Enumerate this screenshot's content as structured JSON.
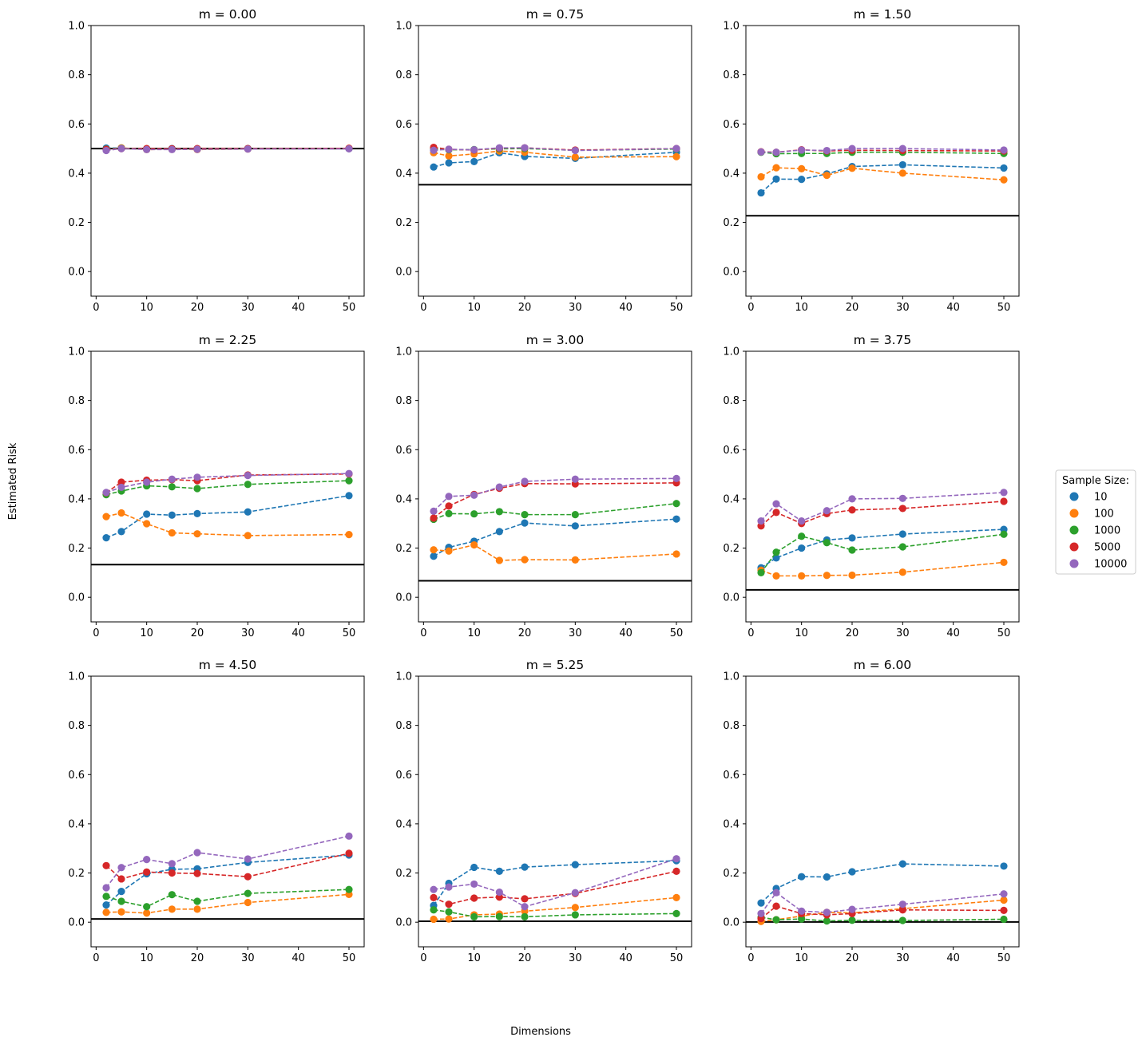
{
  "figure": {
    "xlabel": "Dimensions",
    "ylabel": "Estimated Risk"
  },
  "legend": {
    "title": "Sample Size:",
    "placement": "right-center",
    "entries": [
      "10",
      "100",
      "1000",
      "5000",
      "10000"
    ],
    "colors": [
      "#1f77b4",
      "#ff7f0e",
      "#2ca02c",
      "#d62728",
      "#9467bd"
    ]
  },
  "chart_data": [
    {
      "type": "line",
      "title": "m = 0.00",
      "xlim": [
        -1,
        53
      ],
      "ylim": [
        -0.1,
        1.0
      ],
      "xticks": [
        0,
        10,
        20,
        30,
        40,
        50
      ],
      "yticks": [
        0.0,
        0.2,
        0.4,
        0.6,
        0.8,
        1.0
      ],
      "x": [
        2,
        5,
        10,
        15,
        20,
        30,
        50
      ],
      "reference_line": 0.5,
      "series": [
        {
          "name": "10",
          "values": [
            0.502,
            0.502,
            0.498,
            0.5,
            0.497,
            0.5,
            0.5
          ]
        },
        {
          "name": "100",
          "values": [
            0.495,
            0.503,
            0.496,
            0.497,
            0.496,
            0.498,
            0.501
          ]
        },
        {
          "name": "1000",
          "values": [
            0.498,
            0.501,
            0.499,
            0.498,
            0.499,
            0.499,
            0.5
          ]
        },
        {
          "name": "5000",
          "values": [
            0.497,
            0.5,
            0.5,
            0.499,
            0.5,
            0.5,
            0.501
          ]
        },
        {
          "name": "10000",
          "values": [
            0.492,
            0.5,
            0.496,
            0.496,
            0.497,
            0.498,
            0.499
          ]
        }
      ]
    },
    {
      "type": "line",
      "title": "m = 0.75",
      "xlim": [
        -1,
        53
      ],
      "ylim": [
        -0.1,
        1.0
      ],
      "xticks": [
        0,
        10,
        20,
        30,
        40,
        50
      ],
      "yticks": [
        0.0,
        0.2,
        0.4,
        0.6,
        0.8,
        1.0
      ],
      "x": [
        2,
        5,
        10,
        15,
        20,
        30,
        50
      ],
      "reference_line": 0.353,
      "series": [
        {
          "name": "10",
          "values": [
            0.425,
            0.442,
            0.447,
            0.483,
            0.468,
            0.46,
            0.485
          ]
        },
        {
          "name": "100",
          "values": [
            0.483,
            0.47,
            0.478,
            0.49,
            0.485,
            0.465,
            0.467
          ]
        },
        {
          "name": "1000",
          "values": [
            0.498,
            0.495,
            0.496,
            0.499,
            0.5,
            0.493,
            0.498
          ]
        },
        {
          "name": "5000",
          "values": [
            0.505,
            0.497,
            0.494,
            0.502,
            0.503,
            0.494,
            0.5
          ]
        },
        {
          "name": "10000",
          "values": [
            0.493,
            0.497,
            0.495,
            0.503,
            0.503,
            0.492,
            0.5
          ]
        }
      ]
    },
    {
      "type": "line",
      "title": "m = 1.50",
      "xlim": [
        -1,
        53
      ],
      "ylim": [
        -0.1,
        1.0
      ],
      "xticks": [
        0,
        10,
        20,
        30,
        40,
        50
      ],
      "yticks": [
        0.0,
        0.2,
        0.4,
        0.6,
        0.8,
        1.0
      ],
      "x": [
        2,
        5,
        10,
        15,
        20,
        30,
        50
      ],
      "reference_line": 0.227,
      "series": [
        {
          "name": "10",
          "values": [
            0.32,
            0.376,
            0.375,
            0.397,
            0.427,
            0.434,
            0.421
          ]
        },
        {
          "name": "100",
          "values": [
            0.385,
            0.422,
            0.418,
            0.391,
            0.42,
            0.4,
            0.373
          ]
        },
        {
          "name": "1000",
          "values": [
            0.485,
            0.479,
            0.48,
            0.48,
            0.485,
            0.485,
            0.48
          ]
        },
        {
          "name": "5000",
          "values": [
            0.487,
            0.485,
            0.495,
            0.49,
            0.493,
            0.492,
            0.49
          ]
        },
        {
          "name": "10000",
          "values": [
            0.486,
            0.485,
            0.494,
            0.492,
            0.5,
            0.5,
            0.494
          ]
        }
      ]
    },
    {
      "type": "line",
      "title": "m = 2.25",
      "xlim": [
        -1,
        53
      ],
      "ylim": [
        -0.1,
        1.0
      ],
      "xticks": [
        0,
        10,
        20,
        30,
        40,
        50
      ],
      "yticks": [
        0.0,
        0.2,
        0.4,
        0.6,
        0.8,
        1.0
      ],
      "x": [
        2,
        5,
        10,
        15,
        20,
        30,
        50
      ],
      "reference_line": 0.133,
      "series": [
        {
          "name": "10",
          "values": [
            0.242,
            0.267,
            0.338,
            0.334,
            0.34,
            0.347,
            0.413
          ]
        },
        {
          "name": "100",
          "values": [
            0.328,
            0.343,
            0.299,
            0.262,
            0.258,
            0.251,
            0.255
          ]
        },
        {
          "name": "1000",
          "values": [
            0.417,
            0.432,
            0.453,
            0.449,
            0.442,
            0.459,
            0.474
          ]
        },
        {
          "name": "5000",
          "values": [
            0.425,
            0.468,
            0.476,
            0.478,
            0.474,
            0.497,
            0.501
          ]
        },
        {
          "name": "10000",
          "values": [
            0.426,
            0.447,
            0.468,
            0.48,
            0.488,
            0.495,
            0.503
          ]
        }
      ]
    },
    {
      "type": "line",
      "title": "m = 3.00",
      "xlim": [
        -1,
        53
      ],
      "ylim": [
        -0.1,
        1.0
      ],
      "xticks": [
        0,
        10,
        20,
        30,
        40,
        50
      ],
      "yticks": [
        0.0,
        0.2,
        0.4,
        0.6,
        0.8,
        1.0
      ],
      "x": [
        2,
        5,
        10,
        15,
        20,
        30,
        50
      ],
      "reference_line": 0.067,
      "series": [
        {
          "name": "10",
          "values": [
            0.167,
            0.203,
            0.228,
            0.267,
            0.302,
            0.29,
            0.318
          ]
        },
        {
          "name": "100",
          "values": [
            0.193,
            0.188,
            0.213,
            0.15,
            0.153,
            0.152,
            0.176
          ]
        },
        {
          "name": "1000",
          "values": [
            0.317,
            0.34,
            0.339,
            0.348,
            0.336,
            0.336,
            0.381
          ]
        },
        {
          "name": "5000",
          "values": [
            0.322,
            0.371,
            0.418,
            0.443,
            0.462,
            0.461,
            0.465
          ]
        },
        {
          "name": "10000",
          "values": [
            0.35,
            0.41,
            0.415,
            0.448,
            0.471,
            0.48,
            0.483
          ]
        }
      ]
    },
    {
      "type": "line",
      "title": "m = 3.75",
      "xlim": [
        -1,
        53
      ],
      "ylim": [
        -0.1,
        1.0
      ],
      "xticks": [
        0,
        10,
        20,
        30,
        40,
        50
      ],
      "yticks": [
        0.0,
        0.2,
        0.4,
        0.6,
        0.8,
        1.0
      ],
      "x": [
        2,
        5,
        10,
        15,
        20,
        30,
        50
      ],
      "reference_line": 0.03,
      "series": [
        {
          "name": "10",
          "values": [
            0.12,
            0.16,
            0.2,
            0.233,
            0.241,
            0.257,
            0.276
          ]
        },
        {
          "name": "100",
          "values": [
            0.11,
            0.087,
            0.087,
            0.089,
            0.09,
            0.102,
            0.142
          ]
        },
        {
          "name": "1000",
          "values": [
            0.1,
            0.183,
            0.248,
            0.222,
            0.192,
            0.205,
            0.256
          ]
        },
        {
          "name": "5000",
          "values": [
            0.29,
            0.345,
            0.3,
            0.34,
            0.355,
            0.361,
            0.39
          ]
        },
        {
          "name": "10000",
          "values": [
            0.31,
            0.38,
            0.31,
            0.352,
            0.4,
            0.402,
            0.426
          ]
        }
      ]
    },
    {
      "type": "line",
      "title": "m = 4.50",
      "xlim": [
        -1,
        53
      ],
      "ylim": [
        -0.1,
        1.0
      ],
      "xticks": [
        0,
        10,
        20,
        30,
        40,
        50
      ],
      "yticks": [
        0.0,
        0.2,
        0.4,
        0.6,
        0.8,
        1.0
      ],
      "x": [
        2,
        5,
        10,
        15,
        20,
        30,
        50
      ],
      "reference_line": 0.013,
      "series": [
        {
          "name": "10",
          "values": [
            0.07,
            0.125,
            0.197,
            0.215,
            0.217,
            0.243,
            0.273
          ]
        },
        {
          "name": "100",
          "values": [
            0.04,
            0.042,
            0.037,
            0.053,
            0.053,
            0.08,
            0.113
          ]
        },
        {
          "name": "1000",
          "values": [
            0.105,
            0.085,
            0.063,
            0.112,
            0.085,
            0.117,
            0.133
          ]
        },
        {
          "name": "5000",
          "values": [
            0.23,
            0.176,
            0.204,
            0.2,
            0.198,
            0.185,
            0.28
          ]
        },
        {
          "name": "10000",
          "values": [
            0.14,
            0.222,
            0.255,
            0.238,
            0.283,
            0.257,
            0.35
          ]
        }
      ]
    },
    {
      "type": "line",
      "title": "m = 5.25",
      "xlim": [
        -1,
        53
      ],
      "ylim": [
        -0.1,
        1.0
      ],
      "xticks": [
        0,
        10,
        20,
        30,
        40,
        50
      ],
      "yticks": [
        0.0,
        0.2,
        0.4,
        0.6,
        0.8,
        1.0
      ],
      "x": [
        2,
        5,
        10,
        15,
        20,
        30,
        50
      ],
      "reference_line": 0.004,
      "series": [
        {
          "name": "10",
          "values": [
            0.068,
            0.158,
            0.223,
            0.207,
            0.224,
            0.234,
            0.25
          ]
        },
        {
          "name": "100",
          "values": [
            0.012,
            0.013,
            0.03,
            0.033,
            0.045,
            0.06,
            0.1
          ]
        },
        {
          "name": "1000",
          "values": [
            0.05,
            0.042,
            0.022,
            0.023,
            0.022,
            0.03,
            0.035
          ]
        },
        {
          "name": "5000",
          "values": [
            0.1,
            0.073,
            0.098,
            0.102,
            0.095,
            0.117,
            0.207
          ]
        },
        {
          "name": "10000",
          "values": [
            0.133,
            0.143,
            0.155,
            0.122,
            0.063,
            0.12,
            0.258
          ]
        }
      ]
    },
    {
      "type": "line",
      "title": "m = 6.00",
      "xlim": [
        -1,
        53
      ],
      "ylim": [
        -0.1,
        1.0
      ],
      "xticks": [
        0,
        10,
        20,
        30,
        40,
        50
      ],
      "yticks": [
        0.0,
        0.2,
        0.4,
        0.6,
        0.8,
        1.0
      ],
      "x": [
        2,
        5,
        10,
        15,
        20,
        30,
        50
      ],
      "reference_line": 0.001,
      "series": [
        {
          "name": "10",
          "values": [
            0.078,
            0.137,
            0.185,
            0.184,
            0.205,
            0.237,
            0.228
          ]
        },
        {
          "name": "100",
          "values": [
            0.003,
            0.01,
            0.025,
            0.04,
            0.038,
            0.055,
            0.09
          ]
        },
        {
          "name": "1000",
          "values": [
            0.02,
            0.01,
            0.013,
            0.005,
            0.008,
            0.007,
            0.012
          ]
        },
        {
          "name": "5000",
          "values": [
            0.015,
            0.065,
            0.035,
            0.03,
            0.035,
            0.05,
            0.048
          ]
        },
        {
          "name": "10000",
          "values": [
            0.035,
            0.12,
            0.045,
            0.04,
            0.052,
            0.073,
            0.115
          ]
        }
      ]
    }
  ]
}
